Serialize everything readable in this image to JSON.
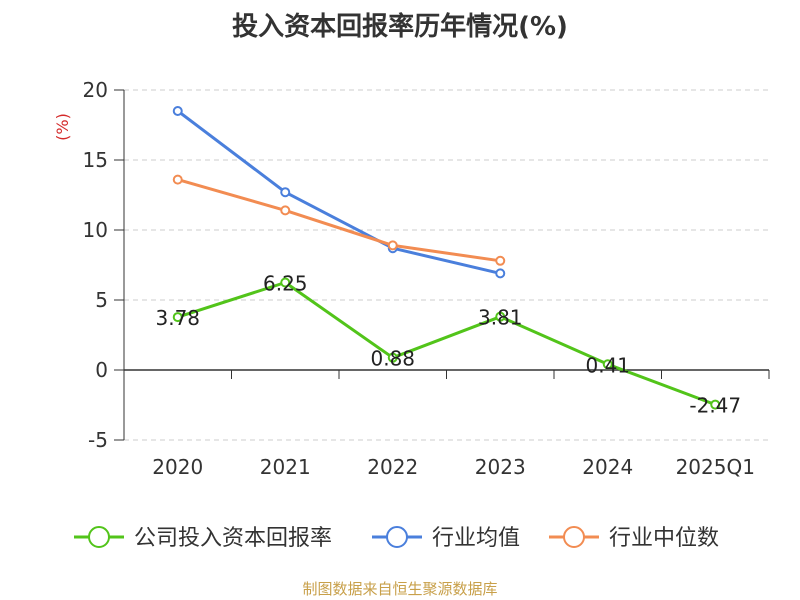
{
  "chart_data": {
    "type": "line",
    "title": "投入资本回报率历年情况(%)",
    "ylabel": "(%)",
    "xlabel": "",
    "categories": [
      "2020",
      "2021",
      "2022",
      "2023",
      "2024",
      "2025Q1"
    ],
    "y_ticks": [
      "20",
      "15",
      "10",
      "5",
      "0",
      "-5"
    ],
    "y_tick_values": [
      20,
      15,
      10,
      5,
      0,
      -5
    ],
    "ylim": [
      -5,
      20
    ],
    "grid": true,
    "legend_position": "bottom",
    "series": [
      {
        "name": "公司投入资本回报率",
        "color": "#52c41a",
        "values": [
          3.78,
          6.25,
          0.88,
          3.81,
          0.41,
          -2.47
        ],
        "labels": [
          "3.78",
          "6.25",
          "0.88",
          "3.81",
          "0.41",
          "-2.47"
        ]
      },
      {
        "name": "行业均值",
        "color": "#4a7fdc",
        "values": [
          18.5,
          12.7,
          8.7,
          6.9,
          null,
          null
        ]
      },
      {
        "name": "行业中位数",
        "color": "#f28c52",
        "values": [
          13.6,
          11.4,
          8.9,
          7.8,
          null,
          null
        ]
      }
    ]
  },
  "footer": {
    "source": "制图数据来自恒生聚源数据库"
  }
}
